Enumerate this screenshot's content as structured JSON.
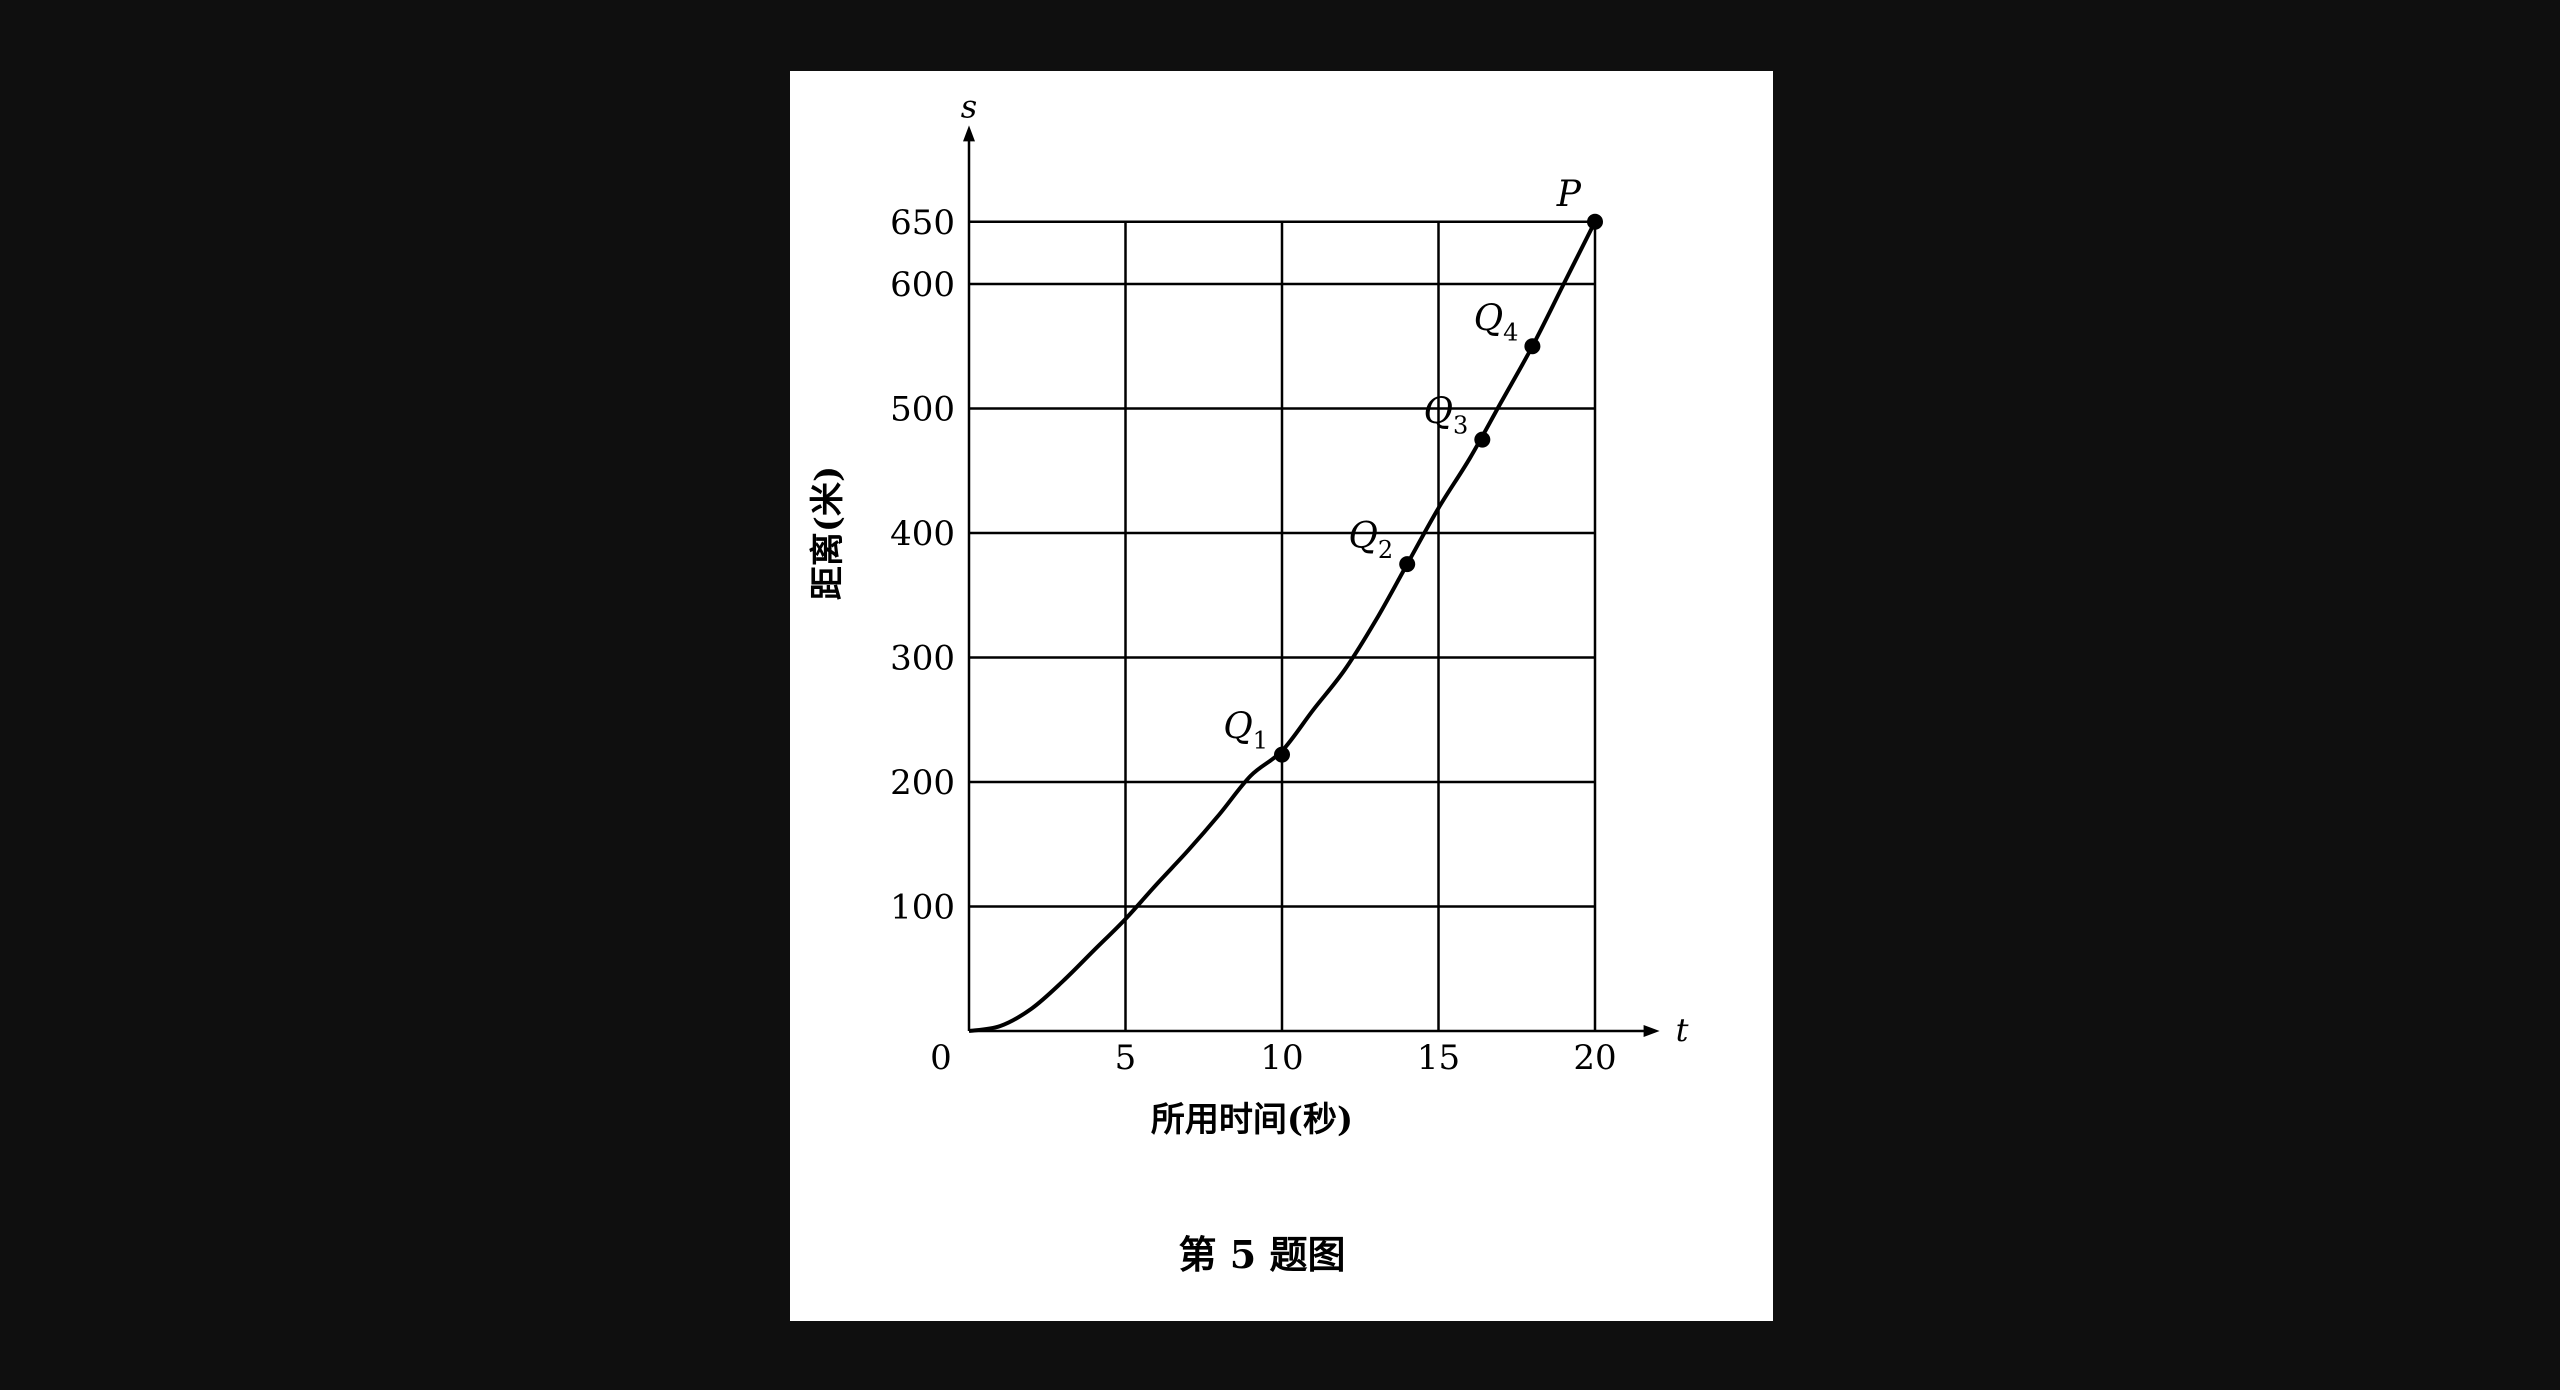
{
  "chart_data": {
    "type": "line",
    "title": "第 5 题图",
    "xlabel": "所用时间(秒)",
    "ylabel": "距离(米)",
    "x_axis_symbol": "t",
    "y_axis_symbol": "s",
    "origin_label": "0",
    "xlim": [
      0,
      22
    ],
    "ylim": [
      0,
      680
    ],
    "x_ticks": [
      5,
      10,
      15,
      20
    ],
    "y_ticks": [
      100,
      200,
      300,
      400,
      500,
      600,
      650
    ],
    "grid": true,
    "series": [
      {
        "x": [
          0,
          1,
          2,
          3,
          4,
          5,
          6,
          7,
          8,
          9,
          10,
          11,
          12,
          13,
          14,
          15,
          16,
          17,
          18,
          19,
          20
        ],
        "y": [
          0,
          4,
          18,
          40,
          65,
          90,
          118,
          145,
          174,
          205,
          225,
          258,
          290,
          330,
          375,
          420,
          460,
          505,
          550,
          600,
          650
        ]
      }
    ],
    "points": [
      {
        "name": "Q",
        "sub": "1",
        "x": 10,
        "y": 222
      },
      {
        "name": "Q",
        "sub": "2",
        "x": 14,
        "y": 375
      },
      {
        "name": "Q",
        "sub": "3",
        "x": 16.4,
        "y": 475
      },
      {
        "name": "Q",
        "sub": "4",
        "x": 18,
        "y": 550
      },
      {
        "name": "P",
        "sub": "",
        "x": 20,
        "y": 650
      }
    ]
  }
}
